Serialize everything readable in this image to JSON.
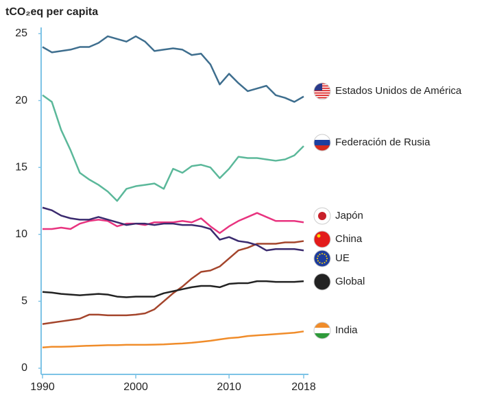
{
  "chart_data": {
    "type": "line",
    "title": "tCO₂eq per capita",
    "x": [
      1990,
      1991,
      1992,
      1993,
      1994,
      1995,
      1996,
      1997,
      1998,
      1999,
      2000,
      2001,
      2002,
      2003,
      2004,
      2005,
      2006,
      2007,
      2008,
      2009,
      2010,
      2011,
      2012,
      2013,
      2014,
      2015,
      2016,
      2017,
      2018
    ],
    "xlim": [
      1990,
      2018
    ],
    "xticks": [
      1990,
      2000,
      2010,
      2018
    ],
    "ylim": [
      0,
      25
    ],
    "yticks": [
      0,
      5,
      10,
      15,
      20,
      25
    ],
    "series": [
      {
        "name": "Estados Unidos de América",
        "color": "#3e6e8e",
        "values": [
          24.0,
          23.6,
          23.7,
          23.8,
          24.0,
          24.0,
          24.3,
          24.8,
          24.6,
          24.4,
          24.8,
          24.4,
          23.7,
          23.8,
          23.9,
          23.8,
          23.4,
          23.5,
          22.7,
          21.2,
          22.0,
          21.3,
          20.7,
          20.9,
          21.1,
          20.4,
          20.2,
          19.9,
          20.3
        ]
      },
      {
        "name": "Federación de Rusia",
        "color": "#5bb89a",
        "values": [
          20.4,
          19.9,
          17.8,
          16.3,
          14.6,
          14.1,
          13.7,
          13.2,
          12.5,
          13.4,
          13.6,
          13.7,
          13.8,
          13.4,
          14.9,
          14.6,
          15.1,
          15.2,
          15.0,
          14.2,
          14.9,
          15.8,
          15.7,
          15.7,
          15.6,
          15.5,
          15.6,
          15.9,
          16.6
        ]
      },
      {
        "name": "Japón",
        "color": "#e8337f",
        "values": [
          10.4,
          10.4,
          10.5,
          10.4,
          10.8,
          11.0,
          11.1,
          11.0,
          10.6,
          10.8,
          10.8,
          10.7,
          10.9,
          10.9,
          10.9,
          11.0,
          10.9,
          11.2,
          10.6,
          10.1,
          10.6,
          11.0,
          11.3,
          11.6,
          11.3,
          11.0,
          11.0,
          11.0,
          10.9
        ]
      },
      {
        "name": "China",
        "color": "#a4452c",
        "values": [
          3.3,
          3.4,
          3.5,
          3.6,
          3.7,
          4.0,
          4.0,
          3.95,
          3.95,
          3.95,
          4.0,
          4.1,
          4.4,
          5.0,
          5.6,
          6.1,
          6.7,
          7.2,
          7.3,
          7.6,
          8.2,
          8.8,
          9.0,
          9.3,
          9.3,
          9.3,
          9.4,
          9.4,
          9.5
        ]
      },
      {
        "name": "UE",
        "color": "#3a2a6e",
        "values": [
          12.0,
          11.8,
          11.4,
          11.2,
          11.1,
          11.1,
          11.3,
          11.1,
          10.9,
          10.7,
          10.8,
          10.8,
          10.7,
          10.8,
          10.8,
          10.7,
          10.7,
          10.6,
          10.4,
          9.6,
          9.8,
          9.5,
          9.4,
          9.2,
          8.8,
          8.9,
          8.9,
          8.9,
          8.8
        ]
      },
      {
        "name": "Global",
        "color": "#222222",
        "values": [
          5.7,
          5.65,
          5.55,
          5.5,
          5.45,
          5.5,
          5.55,
          5.5,
          5.35,
          5.3,
          5.35,
          5.35,
          5.35,
          5.6,
          5.75,
          5.9,
          6.05,
          6.15,
          6.15,
          6.05,
          6.3,
          6.35,
          6.35,
          6.5,
          6.5,
          6.45,
          6.45,
          6.45,
          6.5
        ]
      },
      {
        "name": "India",
        "color": "#f08c2a",
        "values": [
          1.55,
          1.6,
          1.6,
          1.62,
          1.65,
          1.68,
          1.7,
          1.72,
          1.72,
          1.75,
          1.75,
          1.75,
          1.76,
          1.78,
          1.82,
          1.85,
          1.9,
          1.97,
          2.05,
          2.15,
          2.25,
          2.3,
          2.4,
          2.45,
          2.5,
          2.55,
          2.6,
          2.65,
          2.75
        ]
      }
    ]
  }
}
